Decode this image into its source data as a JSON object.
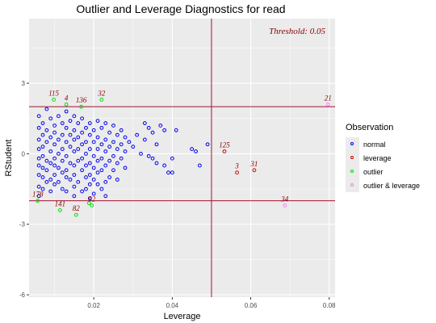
{
  "chart_data": {
    "type": "scatter",
    "title": "Outlier and Leverage Diagnostics for read",
    "xlabel": "Leverage",
    "ylabel": "RStudent",
    "xlim": [
      0.0035,
      0.0815
    ],
    "ylim": [
      -6.1,
      5.75
    ],
    "xticks": [
      0.02,
      0.04,
      0.06,
      0.08
    ],
    "xtick_labels": [
      "0.02",
      "0.04",
      "0.06",
      "0.08"
    ],
    "yticks": [
      -6,
      -3,
      0,
      3
    ],
    "ytick_labels": [
      "-6",
      "-3",
      "0",
      "3"
    ],
    "grid": true,
    "legend_position": "right",
    "threshold_text": "Threshold: 0.05",
    "reference_lines": {
      "vertical_x": 0.05,
      "horizontal_y": [
        -2,
        2
      ]
    },
    "legend": {
      "title": "Observation",
      "entries": [
        "normal",
        "leverage",
        "outlier",
        "outlier & leverage"
      ]
    },
    "colors": {
      "normal": "#0000ee",
      "leverage": "#dd0000",
      "outlier": "#00dd00",
      "outlier & leverage": "#ee82ee",
      "reference_line": "#a50f32",
      "label": "#8b0000",
      "panel": "#ebebeb"
    },
    "series": [
      {
        "name": "normal",
        "points": [
          [
            0.006,
            1.6
          ],
          [
            0.006,
            1.1
          ],
          [
            0.006,
            0.6
          ],
          [
            0.006,
            0.2
          ],
          [
            0.006,
            -0.2
          ],
          [
            0.006,
            -0.5
          ],
          [
            0.006,
            -0.9
          ],
          [
            0.006,
            -1.4
          ],
          [
            0.006,
            -1.8
          ],
          [
            0.007,
            1.3
          ],
          [
            0.007,
            0.8
          ],
          [
            0.007,
            0.3
          ],
          [
            0.007,
            -0.1
          ],
          [
            0.007,
            -0.6
          ],
          [
            0.007,
            -1.0
          ],
          [
            0.007,
            -1.5
          ],
          [
            0.008,
            1.9
          ],
          [
            0.008,
            1.0
          ],
          [
            0.008,
            0.5
          ],
          [
            0.008,
            -0.3
          ],
          [
            0.008,
            -0.7
          ],
          [
            0.008,
            -1.2
          ],
          [
            0.009,
            1.5
          ],
          [
            0.009,
            0.7
          ],
          [
            0.009,
            0.1
          ],
          [
            0.009,
            -0.4
          ],
          [
            0.009,
            -1.1
          ],
          [
            0.009,
            -1.6
          ],
          [
            0.01,
            1.2
          ],
          [
            0.01,
            0.9
          ],
          [
            0.01,
            0.4
          ],
          [
            0.01,
            -0.2
          ],
          [
            0.01,
            -0.5
          ],
          [
            0.01,
            -0.9
          ],
          [
            0.01,
            -1.3
          ],
          [
            0.011,
            1.6
          ],
          [
            0.011,
            0.6
          ],
          [
            0.011,
            0.0
          ],
          [
            0.011,
            -0.6
          ],
          [
            0.011,
            -1.2
          ],
          [
            0.012,
            1.3
          ],
          [
            0.012,
            0.8
          ],
          [
            0.012,
            0.2
          ],
          [
            0.012,
            -0.3
          ],
          [
            0.012,
            -0.8
          ],
          [
            0.012,
            -1.5
          ],
          [
            0.013,
            1.8
          ],
          [
            0.013,
            1.1
          ],
          [
            0.013,
            0.5
          ],
          [
            0.013,
            -0.1
          ],
          [
            0.013,
            -0.7
          ],
          [
            0.013,
            -1.0
          ],
          [
            0.013,
            -1.6
          ],
          [
            0.014,
            1.4
          ],
          [
            0.014,
            0.8
          ],
          [
            0.014,
            0.3
          ],
          [
            0.014,
            -0.4
          ],
          [
            0.014,
            -1.1
          ],
          [
            0.015,
            1.6
          ],
          [
            0.015,
            1.0
          ],
          [
            0.015,
            0.6
          ],
          [
            0.015,
            0.1
          ],
          [
            0.015,
            -0.5
          ],
          [
            0.015,
            -0.9
          ],
          [
            0.015,
            -1.4
          ],
          [
            0.015,
            -1.8
          ],
          [
            0.016,
            1.3
          ],
          [
            0.016,
            0.7
          ],
          [
            0.016,
            0.2
          ],
          [
            0.016,
            -0.3
          ],
          [
            0.016,
            -1.2
          ],
          [
            0.017,
            1.5
          ],
          [
            0.017,
            0.9
          ],
          [
            0.017,
            0.4
          ],
          [
            0.017,
            -0.2
          ],
          [
            0.017,
            -0.7
          ],
          [
            0.017,
            -1.6
          ],
          [
            0.018,
            1.1
          ],
          [
            0.018,
            0.5
          ],
          [
            0.018,
            0.0
          ],
          [
            0.018,
            -0.5
          ],
          [
            0.018,
            -1.0
          ],
          [
            0.018,
            -1.5
          ],
          [
            0.019,
            1.3
          ],
          [
            0.019,
            0.8
          ],
          [
            0.019,
            0.2
          ],
          [
            0.019,
            -0.4
          ],
          [
            0.019,
            -0.9
          ],
          [
            0.019,
            -1.3
          ],
          [
            0.019,
            -1.9
          ],
          [
            0.02,
            1.0
          ],
          [
            0.02,
            0.5
          ],
          [
            0.02,
            -0.1
          ],
          [
            0.02,
            -0.6
          ],
          [
            0.02,
            -1.1
          ],
          [
            0.02,
            -1.7
          ],
          [
            0.021,
            1.4
          ],
          [
            0.021,
            0.7
          ],
          [
            0.021,
            0.2
          ],
          [
            0.021,
            -0.3
          ],
          [
            0.021,
            -0.8
          ],
          [
            0.021,
            -1.3
          ],
          [
            0.022,
            1.1
          ],
          [
            0.022,
            0.4
          ],
          [
            0.022,
            -0.2
          ],
          [
            0.022,
            -0.7
          ],
          [
            0.022,
            -1.5
          ],
          [
            0.023,
            1.3
          ],
          [
            0.023,
            0.6
          ],
          [
            0.023,
            0.1
          ],
          [
            0.023,
            -0.5
          ],
          [
            0.023,
            -1.2
          ],
          [
            0.023,
            -1.8
          ],
          [
            0.024,
            0.9
          ],
          [
            0.024,
            0.3
          ],
          [
            0.024,
            -0.3
          ],
          [
            0.024,
            -1.0
          ],
          [
            0.025,
            1.2
          ],
          [
            0.025,
            0.5
          ],
          [
            0.025,
            -0.1
          ],
          [
            0.025,
            -0.7
          ],
          [
            0.026,
            0.8
          ],
          [
            0.026,
            0.2
          ],
          [
            0.026,
            -0.4
          ],
          [
            0.026,
            -1.1
          ],
          [
            0.027,
            1.0
          ],
          [
            0.027,
            0.4
          ],
          [
            0.027,
            -0.2
          ],
          [
            0.028,
            0.7
          ],
          [
            0.028,
            0.1
          ],
          [
            0.028,
            -0.6
          ],
          [
            0.029,
            0.5
          ],
          [
            0.03,
            0.3
          ],
          [
            0.031,
            0.8
          ],
          [
            0.032,
            0.0
          ],
          [
            0.033,
            1.3
          ],
          [
            0.033,
            0.6
          ],
          [
            0.034,
            1.1
          ],
          [
            0.034,
            -0.1
          ],
          [
            0.035,
            0.9
          ],
          [
            0.035,
            -0.2
          ],
          [
            0.036,
            0.4
          ],
          [
            0.036,
            -0.4
          ],
          [
            0.037,
            1.2
          ],
          [
            0.038,
            1.0
          ],
          [
            0.038,
            -0.5
          ],
          [
            0.039,
            -0.8
          ],
          [
            0.04,
            -0.8
          ],
          [
            0.04,
            -0.2
          ],
          [
            0.041,
            1.0
          ],
          [
            0.045,
            0.2
          ],
          [
            0.046,
            0.1
          ],
          [
            0.047,
            -0.5
          ],
          [
            0.049,
            0.4
          ]
        ]
      },
      {
        "name": "leverage",
        "points": [
          [
            0.0565,
            -0.8
          ],
          [
            0.0533,
            0.1
          ],
          [
            0.0609,
            -0.7
          ]
        ],
        "labels": [
          "3",
          "125",
          "31"
        ]
      },
      {
        "name": "outlier",
        "points": [
          [
            0.0057,
            -2.0
          ],
          [
            0.0098,
            2.3
          ],
          [
            0.0114,
            -2.4
          ],
          [
            0.013,
            2.1
          ],
          [
            0.0155,
            -2.6
          ],
          [
            0.0168,
            2.0
          ],
          [
            0.0188,
            -2.1
          ],
          [
            0.0195,
            -2.2
          ],
          [
            0.022,
            2.3
          ]
        ],
        "labels": [
          "178",
          "115",
          "141",
          "4",
          "82",
          "136",
          "",
          "92",
          "32"
        ]
      },
      {
        "name": "outlier & leverage",
        "points": [
          [
            0.0797,
            2.1
          ],
          [
            0.0687,
            -2.2
          ]
        ],
        "labels": [
          "21",
          "34"
        ]
      }
    ]
  }
}
